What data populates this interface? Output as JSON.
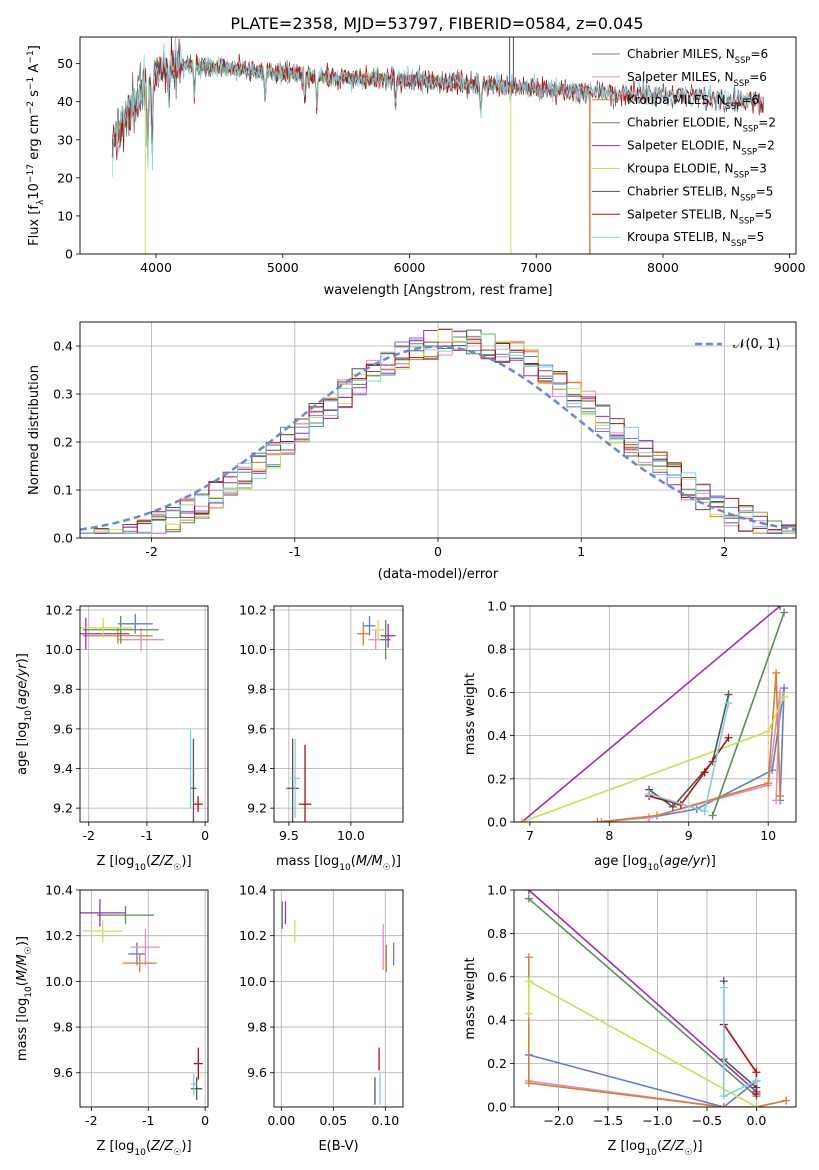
{
  "figure_title": "PLATE=2358, MJD=53797, FIBERID=0584, z=0.045",
  "model_colors": [
    "#5b7fd8",
    "#e58bc5",
    "#d4822c",
    "#5a8f55",
    "#9b30b0",
    "#cde050",
    "#555555",
    "#b01010",
    "#7dd3dd"
  ],
  "chart_data": [
    {
      "type": "line",
      "panel": "spectrum",
      "xlabel": "wavelength [Angstrom, rest frame]",
      "ylabel": "Flux [f_λ 10^-17 erg cm^-2 s^-1 A^-1]",
      "xlim": [
        3400,
        9050
      ],
      "ylim": [
        0,
        57
      ],
      "xticks": [
        4000,
        5000,
        6000,
        7000,
        8000,
        9000
      ],
      "yticks": [
        0,
        10,
        20,
        30,
        40,
        50
      ],
      "grid": false,
      "legend_position": "top-right",
      "series": [
        {
          "name": "Chabrier MILES, N_SSP=6",
          "range": [
            3600,
            7400
          ]
        },
        {
          "name": "Salpeter MILES, N_SSP=6",
          "range": [
            3600,
            7400
          ]
        },
        {
          "name": "Kroupa MILES, N_SSP=6",
          "range": [
            3600,
            7400
          ]
        },
        {
          "name": "Chabrier ELODIE, N_SSP=2",
          "range": [
            3600,
            6800
          ]
        },
        {
          "name": "Salpeter ELODIE, N_SSP=2",
          "range": [
            3600,
            6800
          ]
        },
        {
          "name": "Kroupa ELODIE, N_SSP=3",
          "range": [
            3600,
            6800
          ]
        },
        {
          "name": "Chabrier STELIB, N_SSP=5",
          "range": [
            3600,
            8800
          ]
        },
        {
          "name": "Salpeter STELIB, N_SSP=5",
          "range": [
            3600,
            8800
          ]
        },
        {
          "name": "Kroupa STELIB, N_SSP=5",
          "range": [
            3600,
            8800
          ]
        }
      ],
      "continuum": {
        "x": [
          3650,
          3800,
          4000,
          4200,
          4500,
          4800,
          5000,
          5300,
          5600,
          6000,
          6300,
          6600,
          7000,
          7400,
          7800,
          8200,
          8600,
          8800
        ],
        "y": [
          29,
          38,
          48,
          50,
          49,
          48,
          47.5,
          46.5,
          46,
          46,
          45,
          44.5,
          43.5,
          42.5,
          42,
          41.5,
          40.5,
          40
        ]
      }
    },
    {
      "type": "bar",
      "panel": "residual_histogram",
      "xlabel": "(data-model)/error",
      "ylabel": "Normed distribution",
      "xlim": [
        -2.5,
        2.5
      ],
      "ylim": [
        0,
        0.45
      ],
      "xticks": [
        -2,
        -1,
        0,
        1,
        2
      ],
      "yticks": [
        0.0,
        0.1,
        0.2,
        0.3,
        0.4
      ],
      "grid": true,
      "legend_position": "top-right",
      "reference_curve": {
        "name": "𝒩(0, 1)",
        "mean": 0,
        "sigma": 1
      },
      "bin_width": 0.1
    },
    {
      "type": "scatter",
      "panel": "age_vs_Z",
      "xlabel": "Z [log10(Z/Z☉)]",
      "ylabel": "age [log10(age/yr)]",
      "xlim": [
        -2.15,
        0.05
      ],
      "ylim": [
        9.13,
        10.22
      ],
      "xticks": [
        -2,
        -1,
        0
      ],
      "yticks": [
        9.2,
        9.4,
        9.6,
        9.8,
        10.0,
        10.2
      ],
      "grid": true,
      "points": [
        {
          "x": -1.2,
          "y": 10.13,
          "xerr": 0.3,
          "yerr": 0.05
        },
        {
          "x": -1.1,
          "y": 10.05,
          "xerr": 0.4,
          "yerr": 0.06
        },
        {
          "x": -1.5,
          "y": 10.07,
          "xerr": 0.6,
          "yerr": 0.04
        },
        {
          "x": -1.45,
          "y": 10.1,
          "xerr": 0.65,
          "yerr": 0.07
        },
        {
          "x": -2.05,
          "y": 10.08,
          "xerr": 0.75,
          "yerr": 0.08
        },
        {
          "x": -1.75,
          "y": 10.11,
          "xerr": 0.5,
          "yerr": 0.05
        },
        {
          "x": -0.2,
          "y": 9.3,
          "xerr": 0.05,
          "yerr": 0.25
        },
        {
          "x": -0.12,
          "y": 9.22,
          "xerr": 0.08,
          "yerr": 0.04
        },
        {
          "x": -0.25,
          "y": 9.4,
          "xerr": 0.05,
          "yerr": 0.2
        }
      ]
    },
    {
      "type": "scatter",
      "panel": "age_vs_mass",
      "xlabel": "mass [log10(M/M☉)]",
      "ylabel": "",
      "xlim": [
        9.38,
        10.42
      ],
      "ylim": [
        9.13,
        10.22
      ],
      "xticks": [
        9.5,
        10.0
      ],
      "yticks": [
        9.2,
        9.4,
        9.6,
        9.8,
        10.0,
        10.2
      ],
      "grid": true,
      "points": [
        {
          "x": 10.15,
          "y": 10.12,
          "xerr": 0.05,
          "yerr": 0.05
        },
        {
          "x": 10.2,
          "y": 10.05,
          "xerr": 0.06,
          "yerr": 0.05
        },
        {
          "x": 10.1,
          "y": 10.08,
          "xerr": 0.05,
          "yerr": 0.06
        },
        {
          "x": 10.28,
          "y": 10.05,
          "xerr": 0.04,
          "yerr": 0.1
        },
        {
          "x": 10.3,
          "y": 10.07,
          "xerr": 0.06,
          "yerr": 0.06
        },
        {
          "x": 10.22,
          "y": 10.1,
          "xerr": 0.05,
          "yerr": 0.05
        },
        {
          "x": 9.53,
          "y": 9.3,
          "xerr": 0.05,
          "yerr": 0.25
        },
        {
          "x": 9.63,
          "y": 9.22,
          "xerr": 0.05,
          "yerr": 0.3
        },
        {
          "x": 9.55,
          "y": 9.35,
          "xerr": 0.04,
          "yerr": 0.2
        }
      ]
    },
    {
      "type": "line",
      "panel": "mass_weight_vs_age",
      "xlabel": "age [log10(age/yr)]",
      "ylabel": "mass weight",
      "xlim": [
        6.8,
        10.35
      ],
      "ylim": [
        0,
        1.0
      ],
      "xticks": [
        7,
        8,
        9,
        10
      ],
      "yticks": [
        0.0,
        0.2,
        0.4,
        0.6,
        0.8,
        1.0
      ],
      "grid": true,
      "series": [
        {
          "x": [
            8.5,
            9.1,
            10.05,
            10.2,
            10.15
          ],
          "y": [
            0.02,
            0.06,
            0.24,
            0.62,
            0.1
          ]
        },
        {
          "x": [
            7.9,
            8.5,
            10.0,
            10.15,
            10.1
          ],
          "y": [
            0.0,
            0.02,
            0.17,
            0.6,
            0.1
          ]
        },
        {
          "x": [
            7.85,
            8.6,
            10.0,
            10.1,
            10.15
          ],
          "y": [
            0.0,
            0.03,
            0.18,
            0.69,
            0.12
          ]
        },
        {
          "x": [
            9.3,
            10.2
          ],
          "y": [
            0.03,
            0.97
          ]
        },
        {
          "x": [
            6.9,
            10.15
          ],
          "y": [
            0.0,
            1.0
          ]
        },
        {
          "x": [
            6.9,
            10.0,
            10.2
          ],
          "y": [
            0.0,
            0.42,
            0.58
          ]
        },
        {
          "x": [
            8.5,
            8.8,
            9.3,
            9.5
          ],
          "y": [
            0.15,
            0.07,
            0.28,
            0.59
          ]
        },
        {
          "x": [
            8.5,
            8.9,
            9.2,
            9.5
          ],
          "y": [
            0.12,
            0.08,
            0.23,
            0.39
          ]
        },
        {
          "x": [
            8.5,
            9.2,
            9.5
          ],
          "y": [
            0.13,
            0.05,
            0.55
          ]
        }
      ]
    },
    {
      "type": "scatter",
      "panel": "mass_vs_Z",
      "xlabel": "Z [log10(Z/Z☉)]",
      "ylabel": "mass [log10(M/M☉)]",
      "xlim": [
        -2.2,
        0.05
      ],
      "ylim": [
        9.45,
        10.4
      ],
      "xticks": [
        -2,
        -1,
        0
      ],
      "yticks": [
        9.6,
        9.8,
        10.0,
        10.2,
        10.4
      ],
      "grid": true,
      "points": [
        {
          "x": -1.2,
          "y": 10.12,
          "xerr": 0.15,
          "yerr": 0.05
        },
        {
          "x": -1.05,
          "y": 10.15,
          "xerr": 0.25,
          "yerr": 0.08
        },
        {
          "x": -1.15,
          "y": 10.08,
          "xerr": 0.3,
          "yerr": 0.04
        },
        {
          "x": -1.4,
          "y": 10.29,
          "xerr": 0.5,
          "yerr": 0.04
        },
        {
          "x": -1.85,
          "y": 10.3,
          "xerr": 0.45,
          "yerr": 0.06
        },
        {
          "x": -1.8,
          "y": 10.22,
          "xerr": 0.35,
          "yerr": 0.05
        },
        {
          "x": -0.15,
          "y": 9.53,
          "xerr": 0.1,
          "yerr": 0.05
        },
        {
          "x": -0.12,
          "y": 9.64,
          "xerr": 0.08,
          "yerr": 0.07
        },
        {
          "x": -0.2,
          "y": 9.55,
          "xerr": 0.05,
          "yerr": 0.05
        }
      ]
    },
    {
      "type": "scatter",
      "panel": "mass_vs_EBV",
      "xlabel": "E(B-V)",
      "ylabel": "",
      "xlim": [
        -0.007,
        0.117
      ],
      "ylim": [
        9.45,
        10.4
      ],
      "xticks": [
        0.0,
        0.05,
        0.1
      ],
      "yticks": [
        9.6,
        9.8,
        10.0,
        10.2,
        10.4
      ],
      "grid": true,
      "points": [
        {
          "x": 0.108,
          "y": 10.12,
          "yerr": 0.05
        },
        {
          "x": 0.098,
          "y": 10.15,
          "yerr": 0.1
        },
        {
          "x": 0.101,
          "y": 10.1,
          "yerr": 0.06
        },
        {
          "x": 0.001,
          "y": 10.29,
          "yerr": 0.06
        },
        {
          "x": 0.004,
          "y": 10.3,
          "yerr": 0.05
        },
        {
          "x": 0.013,
          "y": 10.22,
          "yerr": 0.05
        },
        {
          "x": 0.09,
          "y": 9.52,
          "yerr": 0.06
        },
        {
          "x": 0.094,
          "y": 9.66,
          "yerr": 0.05
        },
        {
          "x": 0.095,
          "y": 9.53,
          "yerr": 0.07
        }
      ]
    },
    {
      "type": "line",
      "panel": "mass_weight_vs_Z",
      "xlabel": "Z [log10(Z/Z☉)]",
      "ylabel": "mass weight",
      "xlim": [
        -2.45,
        0.4
      ],
      "ylim": [
        0,
        1.0
      ],
      "xticks": [
        -2.0,
        -1.5,
        -1.0,
        -0.5,
        0.0
      ],
      "yticks": [
        0.0,
        0.2,
        0.4,
        0.6,
        0.8,
        1.0
      ],
      "grid": true,
      "series": [
        {
          "x": [
            -2.3,
            -0.33,
            0.0
          ],
          "y": [
            0.24,
            0.0,
            0.12
          ]
        },
        {
          "x": [
            -2.3,
            -0.33,
            0.0,
            0.3
          ],
          "y": [
            0.12,
            0.0,
            0.0,
            0.03
          ]
        },
        {
          "x": [
            -2.3,
            -2.3,
            -0.33,
            0.0,
            0.3
          ],
          "y": [
            0.69,
            0.11,
            0.0,
            0.0,
            0.03
          ]
        },
        {
          "x": [
            -2.3,
            0.0
          ],
          "y": [
            0.96,
            0.05
          ]
        },
        {
          "x": [
            -2.3,
            0.0
          ],
          "y": [
            1.0,
            0.07
          ]
        },
        {
          "x": [
            -2.3,
            -2.3,
            0.0
          ],
          "y": [
            0.43,
            0.58,
            0.0
          ]
        },
        {
          "x": [
            -0.33,
            -0.33,
            0.0
          ],
          "y": [
            0.58,
            0.22,
            0.09
          ]
        },
        {
          "x": [
            -0.33,
            0.0,
            0.0
          ],
          "y": [
            0.38,
            0.16,
            0.06
          ]
        },
        {
          "x": [
            -0.33,
            -0.33,
            0.0
          ],
          "y": [
            0.55,
            0.05,
            0.12
          ]
        }
      ]
    }
  ]
}
